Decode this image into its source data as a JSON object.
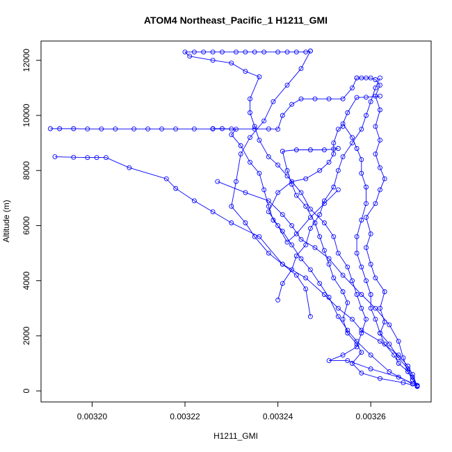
{
  "chart_data": {
    "type": "line",
    "title": "ATOM4 Northeast_Pacific_1 H1211_GMI",
    "xlabel": "H1211_GMI",
    "ylabel": "Altitude (m)",
    "xlim": [
      0.003189,
      0.003273
    ],
    "ylim": [
      -400,
      12700
    ],
    "x_ticks": [
      0.0032,
      0.00322,
      0.00324,
      0.00326
    ],
    "x_tick_labels": [
      "0.00320",
      "0.00322",
      "0.00324",
      "0.00326"
    ],
    "y_ticks": [
      0,
      2000,
      4000,
      6000,
      8000,
      10000,
      12000
    ],
    "y_tick_labels": [
      "0",
      "2000",
      "4000",
      "6000",
      "8000",
      "10000",
      "12000"
    ],
    "grid": false,
    "color": "#0000ff",
    "marker": "open-circle",
    "series": [
      {
        "points": [
          [
            0.00327,
            170
          ],
          [
            0.003269,
            400
          ],
          [
            0.003268,
            700
          ],
          [
            0.003266,
            1000
          ],
          [
            0.003265,
            1300
          ],
          [
            0.003263,
            1700
          ],
          [
            0.003262,
            2100
          ],
          [
            0.003263,
            2500
          ],
          [
            0.003262,
            3000
          ],
          [
            0.003263,
            3600
          ],
          [
            0.003261,
            4100
          ],
          [
            0.00326,
            4600
          ],
          [
            0.003259,
            5200
          ],
          [
            0.00326,
            5700
          ],
          [
            0.003259,
            6300
          ],
          [
            0.003261,
            6800
          ],
          [
            0.003262,
            7300
          ],
          [
            0.003263,
            7700
          ],
          [
            0.003262,
            8100
          ],
          [
            0.003261,
            8600
          ],
          [
            0.003262,
            9100
          ],
          [
            0.003261,
            9600
          ],
          [
            0.003262,
            10200
          ],
          [
            0.003261,
            10700
          ],
          [
            0.003262,
            11100
          ],
          [
            0.003261,
            11300
          ],
          [
            0.00326,
            11360
          ],
          [
            0.003259,
            11360
          ],
          [
            0.003258,
            11360
          ],
          [
            0.003257,
            11360
          ]
        ]
      },
      {
        "points": [
          [
            0.003257,
            11360
          ],
          [
            0.003256,
            11000
          ],
          [
            0.003254,
            10600
          ],
          [
            0.003251,
            10600
          ],
          [
            0.003248,
            10600
          ],
          [
            0.003245,
            10600
          ],
          [
            0.003243,
            10400
          ],
          [
            0.003241,
            10000
          ],
          [
            0.00324,
            9500
          ],
          [
            0.003238,
            9510
          ],
          [
            0.003235,
            9510
          ],
          [
            0.00323,
            9510
          ],
          [
            0.003226,
            9510
          ],
          [
            0.003222,
            9510
          ],
          [
            0.003218,
            9510
          ],
          [
            0.003215,
            9510
          ],
          [
            0.003212,
            9510
          ],
          [
            0.003209,
            9510
          ],
          [
            0.003205,
            9510
          ],
          [
            0.003202,
            9510
          ],
          [
            0.003199,
            9510
          ],
          [
            0.003196,
            9520
          ],
          [
            0.003193,
            9520
          ],
          [
            0.003191,
            9520
          ]
        ]
      },
      {
        "points": [
          [
            0.00327,
            200
          ],
          [
            0.003266,
            500
          ],
          [
            0.00326,
            800
          ],
          [
            0.003255,
            1100
          ],
          [
            0.003251,
            1100
          ],
          [
            0.003254,
            1300
          ],
          [
            0.003257,
            1600
          ],
          [
            0.003258,
            2100
          ],
          [
            0.003259,
            2600
          ],
          [
            0.003258,
            3000
          ],
          [
            0.003257,
            3500
          ],
          [
            0.003256,
            4000
          ],
          [
            0.003255,
            4500
          ],
          [
            0.003253,
            5000
          ],
          [
            0.003252,
            5600
          ],
          [
            0.00325,
            6100
          ],
          [
            0.003247,
            6600
          ],
          [
            0.003245,
            7200
          ],
          [
            0.003242,
            7800
          ],
          [
            0.00324,
            8200
          ],
          [
            0.003238,
            8500
          ],
          [
            0.003236,
            9100
          ],
          [
            0.003235,
            9600
          ],
          [
            0.003234,
            10100
          ],
          [
            0.003234,
            10600
          ],
          [
            0.003236,
            11400
          ],
          [
            0.003233,
            11600
          ],
          [
            0.00323,
            11900
          ],
          [
            0.003226,
            12000
          ],
          [
            0.003221,
            12150
          ],
          [
            0.00322,
            12300
          ],
          [
            0.003222,
            12300
          ],
          [
            0.003224,
            12300
          ],
          [
            0.003226,
            12300
          ],
          [
            0.003228,
            12300
          ],
          [
            0.003231,
            12300
          ],
          [
            0.003233,
            12300
          ],
          [
            0.003235,
            12300
          ],
          [
            0.003237,
            12300
          ],
          [
            0.00324,
            12300
          ],
          [
            0.003242,
            12300
          ],
          [
            0.003244,
            12300
          ],
          [
            0.003246,
            12300
          ],
          [
            0.003247,
            12340
          ]
        ]
      },
      {
        "points": [
          [
            0.003247,
            12340
          ],
          [
            0.003245,
            11700
          ],
          [
            0.003242,
            11100
          ],
          [
            0.003239,
            10500
          ],
          [
            0.003237,
            9800
          ],
          [
            0.003234,
            9200
          ],
          [
            0.003232,
            8600
          ],
          [
            0.003231,
            7600
          ],
          [
            0.00323,
            6700
          ],
          [
            0.003233,
            6100
          ],
          [
            0.003235,
            5600
          ],
          [
            0.003238,
            5000
          ],
          [
            0.003241,
            4600
          ],
          [
            0.003244,
            4200
          ],
          [
            0.003246,
            3700
          ],
          [
            0.003247,
            2700
          ]
        ]
      },
      {
        "points": [
          [
            0.003269,
            250
          ],
          [
            0.003264,
            700
          ],
          [
            0.00326,
            1300
          ],
          [
            0.003257,
            1800
          ],
          [
            0.003255,
            2200
          ],
          [
            0.003253,
            2700
          ],
          [
            0.003251,
            3400
          ],
          [
            0.003249,
            3900
          ],
          [
            0.003247,
            4400
          ],
          [
            0.003245,
            4800
          ],
          [
            0.003243,
            5300
          ],
          [
            0.003241,
            5800
          ],
          [
            0.003239,
            6200
          ],
          [
            0.003238,
            6700
          ],
          [
            0.003237,
            7300
          ],
          [
            0.003236,
            7900
          ],
          [
            0.003234,
            8300
          ],
          [
            0.003232,
            8900
          ],
          [
            0.00323,
            9300
          ],
          [
            0.003231,
            9500
          ],
          [
            0.003228,
            9520
          ],
          [
            0.003226,
            9520
          ]
        ]
      },
      {
        "points": [
          [
            0.003192,
            8500
          ],
          [
            0.003196,
            8480
          ],
          [
            0.003199,
            8470
          ],
          [
            0.003201,
            8470
          ],
          [
            0.003203,
            8470
          ],
          [
            0.003208,
            8100
          ],
          [
            0.003216,
            7700
          ],
          [
            0.003218,
            7350
          ],
          [
            0.003222,
            6900
          ],
          [
            0.003226,
            6500
          ],
          [
            0.00323,
            6100
          ],
          [
            0.003236,
            5600
          ],
          [
            0.003241,
            4600
          ],
          [
            0.003246,
            4100
          ],
          [
            0.00325,
            3500
          ],
          [
            0.003253,
            3000
          ],
          [
            0.003256,
            2600
          ],
          [
            0.003258,
            2200
          ],
          [
            0.003262,
            1800
          ],
          [
            0.003266,
            1300
          ],
          [
            0.003268,
            900
          ],
          [
            0.003269,
            600
          ],
          [
            0.00327,
            180
          ]
        ]
      },
      {
        "points": [
          [
            0.00327,
            170
          ],
          [
            0.003267,
            300
          ],
          [
            0.003262,
            450
          ],
          [
            0.003258,
            650
          ],
          [
            0.003256,
            1000
          ],
          [
            0.003258,
            1400
          ],
          [
            0.003257,
            1700
          ],
          [
            0.003255,
            2100
          ],
          [
            0.003254,
            2600
          ],
          [
            0.003255,
            3200
          ],
          [
            0.003254,
            3600
          ],
          [
            0.003252,
            4100
          ],
          [
            0.003251,
            4600
          ],
          [
            0.00325,
            5100
          ],
          [
            0.003249,
            5600
          ],
          [
            0.003248,
            6100
          ],
          [
            0.003246,
            6700
          ],
          [
            0.003244,
            7100
          ],
          [
            0.003243,
            7500
          ],
          [
            0.003242,
            8000
          ],
          [
            0.003241,
            8700
          ],
          [
            0.003244,
            8750
          ],
          [
            0.003247,
            8750
          ],
          [
            0.00325,
            8750
          ],
          [
            0.003252,
            8780
          ],
          [
            0.003253,
            8800
          ]
        ]
      },
      {
        "points": [
          [
            0.003227,
            7600
          ],
          [
            0.003233,
            7200
          ],
          [
            0.003238,
            6900
          ],
          [
            0.003241,
            6400
          ],
          [
            0.003243,
            6000
          ],
          [
            0.003245,
            5500
          ],
          [
            0.003248,
            5200
          ],
          [
            0.003251,
            4800
          ],
          [
            0.003254,
            4200
          ],
          [
            0.003258,
            3500
          ],
          [
            0.003261,
            3000
          ],
          [
            0.003264,
            2400
          ],
          [
            0.003266,
            1800
          ],
          [
            0.003267,
            1200
          ],
          [
            0.003268,
            700
          ],
          [
            0.003269,
            400
          ]
        ]
      },
      {
        "points": [
          [
            0.003253,
            7300
          ],
          [
            0.00325,
            6800
          ],
          [
            0.003247,
            6300
          ],
          [
            0.003244,
            5700
          ],
          [
            0.003242,
            5400
          ],
          [
            0.00324,
            6000
          ],
          [
            0.003238,
            6500
          ],
          [
            0.00324,
            7200
          ],
          [
            0.003243,
            7600
          ],
          [
            0.003246,
            7700
          ],
          [
            0.003249,
            8000
          ],
          [
            0.003251,
            8300
          ],
          [
            0.003252,
            8600
          ],
          [
            0.003252,
            9000
          ],
          [
            0.003253,
            9500
          ],
          [
            0.003254,
            9600
          ]
        ]
      },
      {
        "points": [
          [
            0.003262,
            10700
          ],
          [
            0.003259,
            10660
          ],
          [
            0.003257,
            10650
          ],
          [
            0.003255,
            10100
          ],
          [
            0.003254,
            9700
          ],
          [
            0.003256,
            9200
          ],
          [
            0.003257,
            8800
          ],
          [
            0.003258,
            8400
          ],
          [
            0.003258,
            7900
          ],
          [
            0.003259,
            7400
          ],
          [
            0.003259,
            6800
          ],
          [
            0.003258,
            6200
          ],
          [
            0.003257,
            5600
          ],
          [
            0.003257,
            5000
          ],
          [
            0.003258,
            4500
          ],
          [
            0.003259,
            4000
          ],
          [
            0.00326,
            3500
          ],
          [
            0.00326,
            3000
          ],
          [
            0.003261,
            2600
          ],
          [
            0.003262,
            2100
          ],
          [
            0.003264,
            1700
          ],
          [
            0.003266,
            1200
          ],
          [
            0.003268,
            800
          ],
          [
            0.003269,
            500
          ],
          [
            0.00327,
            160
          ]
        ]
      },
      {
        "points": [
          [
            0.003262,
            11360
          ],
          [
            0.003261,
            11000
          ],
          [
            0.00326,
            10500
          ],
          [
            0.003259,
            10000
          ],
          [
            0.003258,
            9500
          ],
          [
            0.003256,
            9000
          ],
          [
            0.003254,
            8500
          ],
          [
            0.003253,
            8000
          ],
          [
            0.003252,
            7400
          ],
          [
            0.00325,
            6900
          ],
          [
            0.003249,
            6400
          ],
          [
            0.003247,
            5900
          ],
          [
            0.003246,
            5300
          ],
          [
            0.003244,
            4900
          ],
          [
            0.003243,
            4400
          ],
          [
            0.003241,
            3900
          ],
          [
            0.00324,
            3300
          ]
        ]
      }
    ]
  }
}
